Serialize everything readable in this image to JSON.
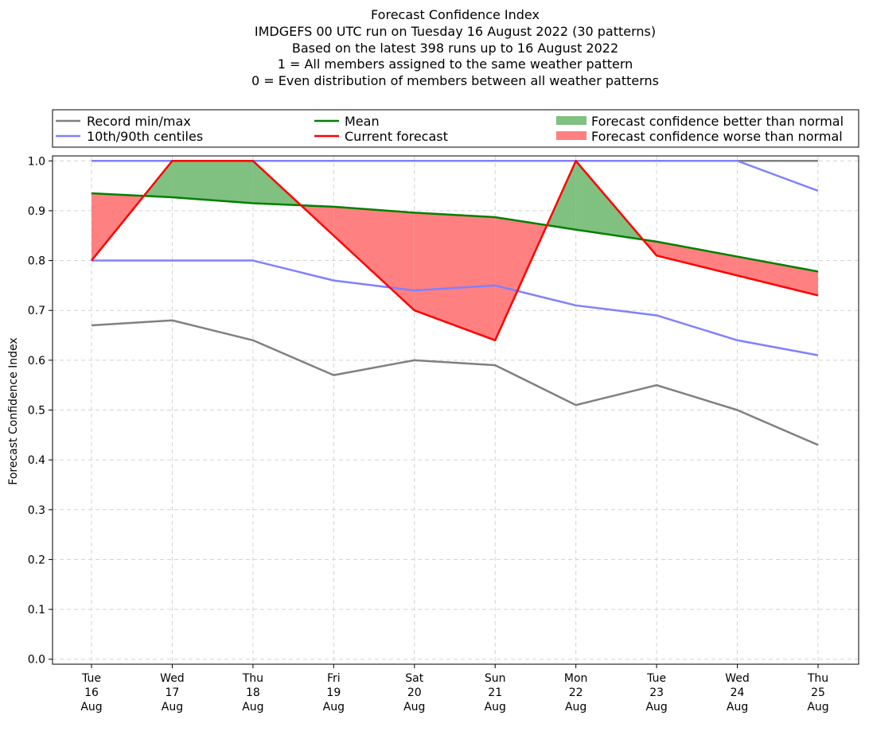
{
  "chart_data": {
    "type": "line",
    "title_lines": [
      "Forecast Confidence Index",
      "IMDGEFS 00 UTC run on Tuesday 16 August 2022 (30 patterns)",
      "Based on the latest 398 runs up to 16 August 2022",
      "1 = All members assigned to the same weather pattern",
      "0 = Even distribution of members between all weather patterns"
    ],
    "ylabel": "Forecast Confidence Index",
    "xlabel": "",
    "ylim": [
      -0.01,
      1.01
    ],
    "yticks": [
      "0.0",
      "0.1",
      "0.2",
      "0.3",
      "0.4",
      "0.5",
      "0.6",
      "0.7",
      "0.8",
      "0.9",
      "1.0"
    ],
    "ytick_values": [
      0,
      0.1,
      0.2,
      0.3,
      0.4,
      0.5,
      0.6,
      0.7,
      0.8,
      0.9,
      1.0
    ],
    "categories": [
      [
        "Tue",
        "16",
        "Aug"
      ],
      [
        "Wed",
        "17",
        "Aug"
      ],
      [
        "Thu",
        "18",
        "Aug"
      ],
      [
        "Fri",
        "19",
        "Aug"
      ],
      [
        "Sat",
        "20",
        "Aug"
      ],
      [
        "Sun",
        "21",
        "Aug"
      ],
      [
        "Mon",
        "22",
        "Aug"
      ],
      [
        "Tue",
        "23",
        "Aug"
      ],
      [
        "Wed",
        "24",
        "Aug"
      ],
      [
        "Thu",
        "25",
        "Aug"
      ]
    ],
    "grid": true,
    "series": [
      {
        "key": "record_max",
        "name": "Record min/max",
        "color": "#808080",
        "values": [
          1.0,
          1.0,
          1.0,
          1.0,
          1.0,
          1.0,
          1.0,
          1.0,
          1.0,
          1.0
        ]
      },
      {
        "key": "record_min",
        "name": "Record min/max",
        "color": "#808080",
        "values": [
          0.67,
          0.68,
          0.64,
          0.57,
          0.6,
          0.59,
          0.51,
          0.55,
          0.5,
          0.43
        ]
      },
      {
        "key": "p90",
        "name": "10th/90th centiles",
        "color": "#8080ff",
        "values": [
          1.0,
          1.0,
          1.0,
          1.0,
          1.0,
          1.0,
          1.0,
          1.0,
          1.0,
          0.94
        ]
      },
      {
        "key": "p10",
        "name": "10th/90th centiles",
        "color": "#8080ff",
        "values": [
          0.8,
          0.8,
          0.8,
          0.76,
          0.74,
          0.75,
          0.71,
          0.69,
          0.64,
          0.61
        ]
      },
      {
        "key": "mean",
        "name": "Mean",
        "color": "#008000",
        "values": [
          0.935,
          0.927,
          0.915,
          0.908,
          0.896,
          0.887,
          0.862,
          0.838,
          0.808,
          0.778
        ]
      },
      {
        "key": "current",
        "name": "Current forecast",
        "color": "#ff0000",
        "values": [
          0.8,
          1.0,
          1.0,
          0.85,
          0.7,
          0.64,
          1.0,
          0.81,
          0.77,
          0.73
        ]
      }
    ],
    "fills": {
      "better": {
        "name": "Forecast confidence better than normal",
        "color": "#80c080"
      },
      "worse": {
        "name": "Forecast confidence worse than normal",
        "color": "#ff8080"
      }
    },
    "legend": {
      "placement": "top",
      "entries": [
        {
          "label": "Record min/max",
          "color": "#808080",
          "kind": "line"
        },
        {
          "label": "10th/90th centiles",
          "color": "#8080ff",
          "kind": "line"
        },
        {
          "label": "Mean",
          "color": "#008000",
          "kind": "line"
        },
        {
          "label": "Current forecast",
          "color": "#ff0000",
          "kind": "line"
        },
        {
          "label": "Forecast confidence better than normal",
          "color": "#80c080",
          "kind": "patch"
        },
        {
          "label": "Forecast confidence worse than normal",
          "color": "#ff8080",
          "kind": "patch"
        }
      ]
    }
  }
}
